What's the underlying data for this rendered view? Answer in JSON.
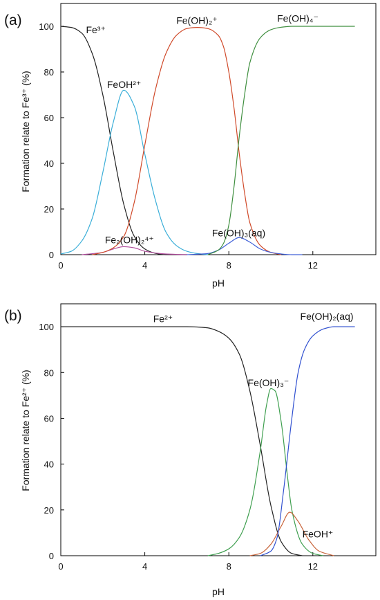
{
  "chart_data": [
    {
      "type": "line",
      "panel_label": "(a)",
      "xlabel": "pH",
      "ylabel": "Formation relate to Fe³⁺ (%)",
      "xlim": [
        0,
        15
      ],
      "ylim": [
        0,
        110
      ],
      "xticks": [
        0,
        4,
        8,
        12
      ],
      "yticks": [
        0,
        20,
        40,
        60,
        80,
        100
      ],
      "legend": "none",
      "grid": false,
      "series": [
        {
          "name": "Fe³⁺",
          "color": "#222222",
          "x": [
            0,
            0.5,
            1,
            1.5,
            2,
            2.5,
            3,
            3.5,
            4,
            4.5,
            5,
            6
          ],
          "y": [
            100,
            99.5,
            97,
            88,
            70,
            45,
            22,
            8,
            2.5,
            0.6,
            0,
            0
          ]
        },
        {
          "name": "FeOH²⁺",
          "color": "#3aaed8",
          "x": [
            0,
            0.5,
            1,
            1.5,
            2,
            2.5,
            3,
            3.5,
            4,
            4.5,
            5,
            5.5,
            6,
            6.5,
            7
          ],
          "y": [
            0.3,
            1.5,
            6,
            16,
            36,
            58,
            72,
            65,
            44,
            24,
            10,
            4,
            1.5,
            0.5,
            0
          ]
        },
        {
          "name": "Fe₂(OH)₂⁴⁺",
          "color": "#b04b9c",
          "x": [
            1,
            2,
            2.5,
            3,
            3.5,
            4,
            5,
            6
          ],
          "y": [
            0,
            1,
            2.5,
            3.5,
            3,
            1.5,
            0.3,
            0
          ]
        },
        {
          "name": "Fe(OH)₂⁺",
          "color": "#d04a2a",
          "x": [
            1.5,
            2,
            2.5,
            3,
            3.5,
            4,
            4.5,
            5,
            5.5,
            6,
            6.5,
            7,
            7.5,
            7.75,
            8,
            8.25,
            8.5,
            8.75,
            9,
            9.5,
            10,
            10.5
          ],
          "y": [
            0,
            1,
            3,
            8,
            23,
            48,
            72,
            88,
            96,
            99,
            99.5,
            99,
            96,
            91,
            80,
            64,
            44,
            27,
            14,
            4,
            1,
            0
          ]
        },
        {
          "name": "Fe(OH)₃(aq)",
          "color": "#4060d8",
          "x": [
            6,
            7,
            7.5,
            8,
            8.5,
            9,
            9.5,
            10,
            10.5,
            11,
            11.5
          ],
          "y": [
            0,
            0.5,
            2,
            5,
            7.5,
            5.5,
            2.5,
            1,
            0.3,
            0,
            0
          ]
        },
        {
          "name": "Fe(OH)₄⁻",
          "color": "#3f8f3f",
          "x": [
            7,
            7.5,
            7.75,
            8,
            8.25,
            8.5,
            8.75,
            9,
            9.5,
            10,
            10.5,
            11,
            12,
            13,
            14
          ],
          "y": [
            0,
            2,
            5,
            13,
            30,
            52,
            70,
            84,
            95,
            98.5,
            99.6,
            100,
            100,
            100,
            100
          ]
        }
      ],
      "annotations": [
        {
          "text": "Fe³⁺",
          "x": 1.2,
          "y": 97
        },
        {
          "text": "FeOH²⁺",
          "x": 2.2,
          "y": 73
        },
        {
          "text": "Fe₂(OH)₂⁴⁺",
          "x": 2.1,
          "y": 5
        },
        {
          "text": "Fe(OH)₂⁺",
          "x": 5.5,
          "y": 101
        },
        {
          "text": "Fe(OH)₃(aq)",
          "x": 7.2,
          "y": 8
        },
        {
          "text": "Fe(OH)₄⁻",
          "x": 10.3,
          "y": 102
        }
      ]
    },
    {
      "type": "line",
      "panel_label": "(b)",
      "xlabel": "pH",
      "ylabel": "Formation relate to Fe²⁺ (%)",
      "xlim": [
        0,
        15
      ],
      "ylim": [
        0,
        110
      ],
      "xticks": [
        0,
        4,
        8,
        12
      ],
      "yticks": [
        0,
        20,
        40,
        60,
        80,
        100
      ],
      "legend": "none",
      "grid": false,
      "series": [
        {
          "name": "Fe²⁺",
          "color": "#222222",
          "x": [
            0,
            2,
            4,
            6,
            7,
            7.5,
            8,
            8.5,
            9,
            9.5,
            10,
            10.5,
            11,
            11.5
          ],
          "y": [
            100,
            100,
            100,
            100,
            99.5,
            98,
            95,
            88,
            72,
            48,
            22,
            6,
            1,
            0
          ]
        },
        {
          "name": "Fe(OH)₃⁻",
          "color": "#3f9f4f",
          "x": [
            7,
            7.5,
            8,
            8.5,
            9,
            9.5,
            9.8,
            10,
            10.2,
            10.5,
            10.8,
            11,
            11.5,
            12,
            12.5
          ],
          "y": [
            0,
            1,
            3,
            8,
            20,
            46,
            66,
            73,
            72,
            58,
            34,
            20,
            5,
            1,
            0
          ]
        },
        {
          "name": "FeOH⁺",
          "color": "#c8643a",
          "x": [
            9,
            9.5,
            10,
            10.5,
            10.9,
            11.3,
            11.8,
            12.3,
            13
          ],
          "y": [
            0,
            1,
            5,
            13,
            19,
            15,
            7,
            2,
            0
          ]
        },
        {
          "name": "Fe(OH)₂(aq)",
          "color": "#3050d0",
          "x": [
            9.5,
            10,
            10.3,
            10.6,
            11,
            11.3,
            11.6,
            12,
            12.5,
            13,
            14
          ],
          "y": [
            0,
            2,
            8,
            28,
            60,
            80,
            90,
            96,
            99,
            100,
            100
          ]
        }
      ],
      "annotations": [
        {
          "text": "Fe²⁺",
          "x": 4.4,
          "y": 102
        },
        {
          "text": "Fe(OH)₃⁻",
          "x": 8.9,
          "y": 74
        },
        {
          "text": "FeOH⁺",
          "x": 11.5,
          "y": 8
        },
        {
          "text": "Fe(OH)₂(aq)",
          "x": 11.4,
          "y": 103
        }
      ]
    }
  ]
}
